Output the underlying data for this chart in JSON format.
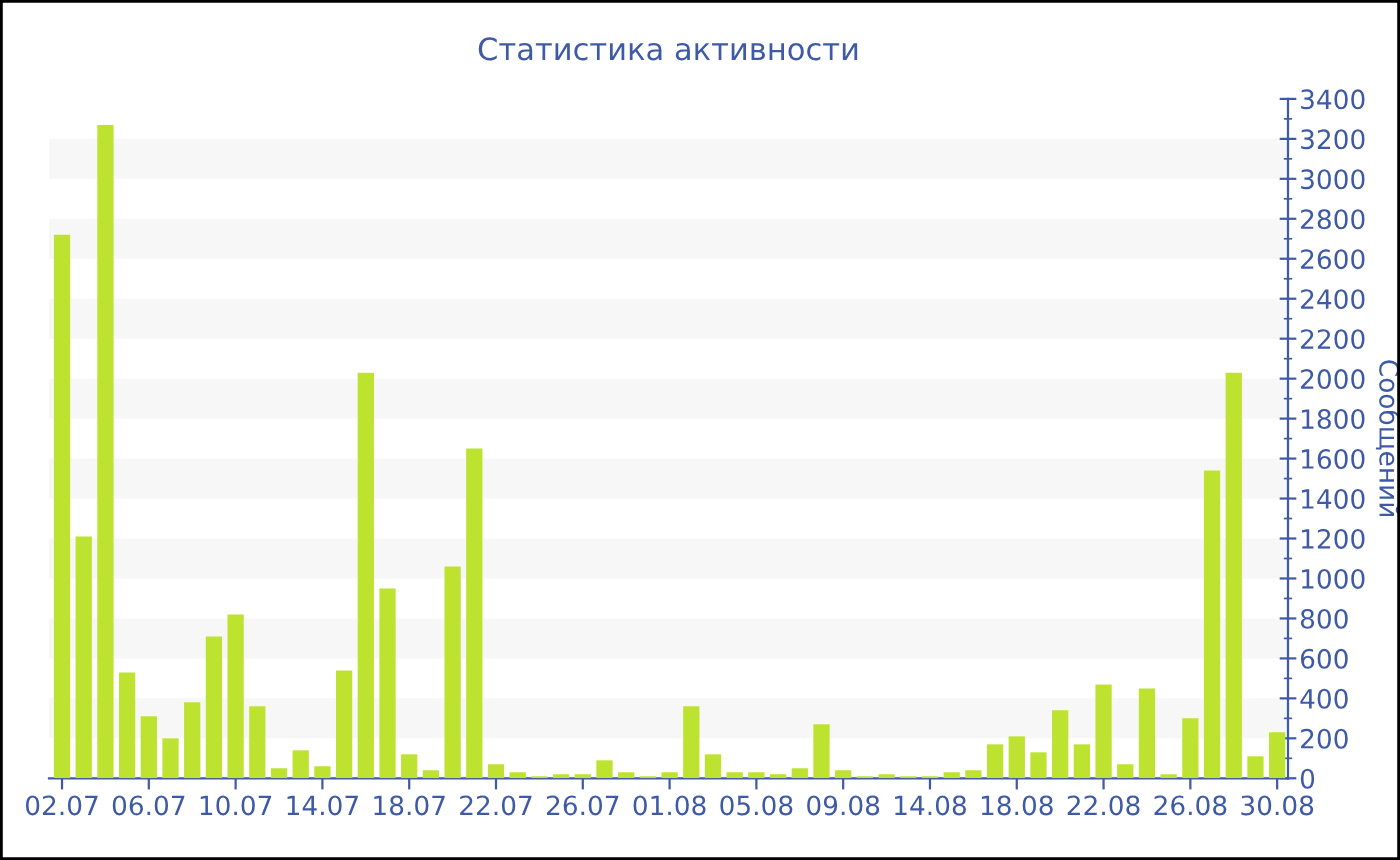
{
  "chart_data": {
    "type": "bar",
    "title": "Статистика активности",
    "ylabel": "Сообщений",
    "categories": [
      "02.07",
      null,
      null,
      null,
      "06.07",
      null,
      null,
      null,
      "10.07",
      null,
      null,
      null,
      "14.07",
      null,
      null,
      null,
      "18.07",
      null,
      null,
      null,
      "22.07",
      null,
      null,
      null,
      "26.07",
      null,
      null,
      null,
      "01.08",
      null,
      null,
      null,
      "05.08",
      null,
      null,
      null,
      "09.08",
      null,
      null,
      null,
      "14.08",
      null,
      null,
      null,
      "18.08",
      null,
      null,
      null,
      "22.08",
      null,
      null,
      null,
      "26.08",
      null,
      null,
      null,
      "30.08"
    ],
    "values": [
      2720,
      1210,
      3270,
      530,
      310,
      200,
      380,
      710,
      820,
      360,
      50,
      140,
      60,
      540,
      2030,
      950,
      120,
      40,
      1060,
      1650,
      70,
      30,
      10,
      20,
      20,
      90,
      30,
      10,
      30,
      360,
      120,
      30,
      30,
      20,
      50,
      270,
      40,
      10,
      20,
      10,
      10,
      30,
      40,
      170,
      210,
      130,
      340,
      170,
      470,
      70,
      450,
      20,
      300,
      1540,
      2030,
      110,
      230
    ],
    "color": "#bde330",
    "ylim": [
      0,
      3400
    ],
    "yticks": [
      0,
      200,
      400,
      600,
      800,
      1000,
      1200,
      1400,
      1600,
      1800,
      2000,
      2200,
      2400,
      2600,
      2800,
      3000,
      3200,
      3400
    ],
    "bands": [
      {
        "axis": "y",
        "from": 200,
        "to": 400,
        "color": "#f7f7f7"
      },
      {
        "axis": "y",
        "from": 600,
        "to": 800,
        "color": "#f7f7f7"
      },
      {
        "axis": "y",
        "from": 1000,
        "to": 1200,
        "color": "#f7f7f7"
      },
      {
        "axis": "y",
        "from": 1400,
        "to": 1600,
        "color": "#f7f7f7"
      },
      {
        "axis": "y",
        "from": 1800,
        "to": 2000,
        "color": "#f7f7f7"
      },
      {
        "axis": "y",
        "from": 2200,
        "to": 2400,
        "color": "#f7f7f7"
      },
      {
        "axis": "y",
        "from": 2600,
        "to": 2800,
        "color": "#f7f7f7"
      },
      {
        "axis": "y",
        "from": 3000,
        "to": 3200,
        "color": "#f7f7f7"
      }
    ]
  }
}
